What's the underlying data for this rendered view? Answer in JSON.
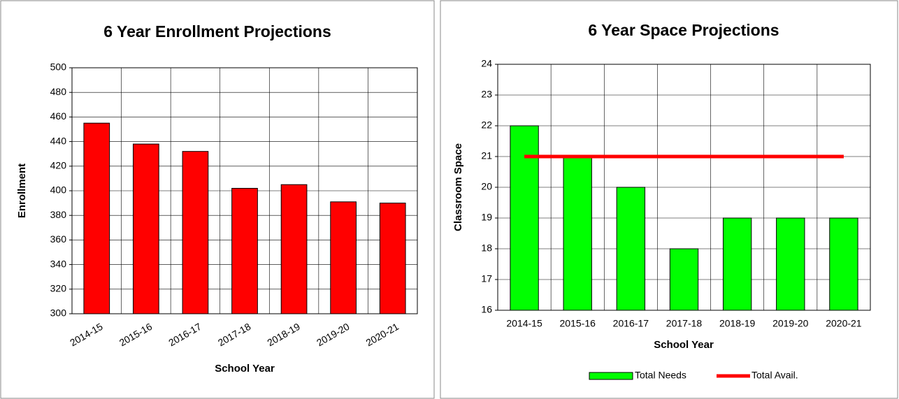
{
  "chart_data": [
    {
      "type": "bar",
      "title": "6 Year Enrollment Projections",
      "categories": [
        "2014-15",
        "2015-16",
        "2016-17",
        "2017-18",
        "2018-19",
        "2019-20",
        "2020-21"
      ],
      "values": [
        455,
        438,
        432,
        402,
        405,
        391,
        390
      ],
      "color": "#ff0000",
      "x_label": "School Year",
      "y_label": "Enrollment",
      "ylim": [
        300,
        500
      ],
      "yticks": [
        300,
        320,
        340,
        360,
        380,
        400,
        420,
        440,
        460,
        480,
        500
      ],
      "grid": true
    },
    {
      "type": "combo",
      "title": "6 Year Space Projections",
      "categories": [
        "2014-15",
        "2015-16",
        "2016-17",
        "2017-18",
        "2018-19",
        "2019-20",
        "2020-21"
      ],
      "series": [
        {
          "name": "Total Needs",
          "type": "bar",
          "color": "#00ff00",
          "values": [
            22,
            21,
            20,
            18,
            19,
            19,
            19
          ]
        },
        {
          "name": "Total Avail.",
          "type": "line",
          "color": "#ff0000",
          "values": [
            21,
            21,
            21,
            21,
            21,
            21,
            21
          ]
        }
      ],
      "x_label": "School Year",
      "y_label": "Classroom Space",
      "ylim": [
        16,
        24
      ],
      "yticks": [
        16,
        17,
        18,
        19,
        20,
        21,
        22,
        23,
        24
      ],
      "grid": true,
      "legend": "bottom"
    }
  ]
}
